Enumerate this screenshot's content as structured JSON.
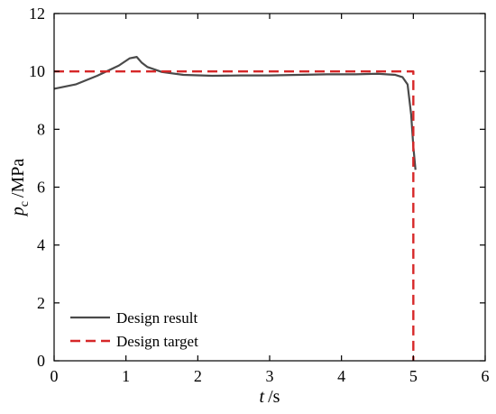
{
  "chart_data": {
    "type": "line",
    "title": "",
    "xlabel": {
      "symbol": "t",
      "unit": "/s"
    },
    "ylabel": {
      "symbol": "p",
      "subscript": "c",
      "unit": "/MPa"
    },
    "xlim": [
      0,
      6
    ],
    "ylim": [
      0,
      12
    ],
    "xticks": [
      0,
      1,
      2,
      3,
      4,
      5,
      6
    ],
    "yticks": [
      0,
      2,
      4,
      6,
      8,
      10,
      12
    ],
    "grid": false,
    "legend_position": "bottom-left",
    "series": [
      {
        "name": "Design result",
        "color": "#4a4a4a",
        "style": "solid",
        "x": [
          0,
          0.3,
          0.6,
          0.9,
          1.05,
          1.15,
          1.22,
          1.3,
          1.5,
          1.8,
          2.2,
          2.6,
          3.0,
          3.4,
          3.8,
          4.2,
          4.5,
          4.75,
          4.85,
          4.92,
          4.97,
          5.0,
          5.03
        ],
        "y": [
          9.4,
          9.55,
          9.85,
          10.2,
          10.45,
          10.5,
          10.3,
          10.15,
          9.98,
          9.88,
          9.85,
          9.86,
          9.86,
          9.88,
          9.9,
          9.9,
          9.92,
          9.88,
          9.8,
          9.55,
          8.5,
          7.4,
          6.6
        ]
      },
      {
        "name": "Design target",
        "color": "#d62728",
        "style": "dashed",
        "x": [
          0,
          5.0,
          5.0
        ],
        "y": [
          10,
          10,
          0
        ]
      }
    ]
  }
}
